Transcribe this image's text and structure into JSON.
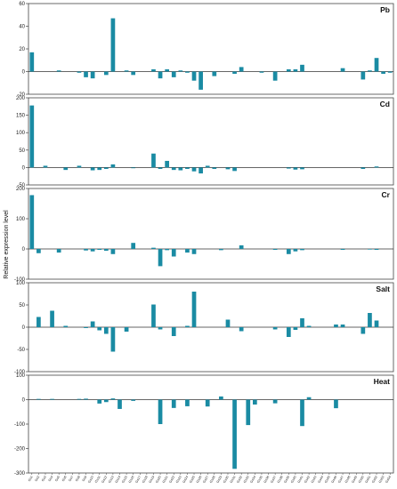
{
  "chart_data": [
    {
      "type": "bar",
      "title": "Pb",
      "ylim": [
        -20,
        60
      ],
      "yticks": [
        -20,
        0,
        20,
        40,
        60
      ],
      "bar_color": "#1a8ba3",
      "values": [
        17,
        0,
        0,
        0,
        1,
        0,
        0,
        -1,
        -5,
        -6,
        0,
        -3,
        47,
        0,
        1,
        -3,
        0,
        0,
        2,
        -6,
        2,
        -5,
        1,
        -1,
        -8,
        -16,
        0,
        -4,
        0,
        0,
        -2,
        4,
        0,
        0,
        -1,
        0,
        -8,
        0,
        2,
        2,
        6,
        0,
        0,
        0,
        0,
        0,
        3,
        0,
        0,
        -7,
        1,
        12,
        -2,
        -1
      ]
    },
    {
      "type": "bar",
      "title": "Cd",
      "ylim": [
        -50,
        200
      ],
      "yticks": [
        -50,
        0,
        50,
        100,
        150,
        200
      ],
      "bar_color": "#1a8ba3",
      "values": [
        178,
        0,
        5,
        0,
        0,
        -7,
        0,
        5,
        0,
        -8,
        -7,
        -4,
        9,
        0,
        0,
        -2,
        0,
        0,
        40,
        -4,
        19,
        -7,
        -8,
        -4,
        -11,
        -17,
        5,
        -4,
        0,
        -5,
        -10,
        0,
        0,
        0,
        0,
        0,
        0,
        0,
        -3,
        -6,
        -5,
        0,
        0,
        0,
        0,
        0,
        0,
        0,
        0,
        -4,
        0,
        3,
        0,
        0
      ]
    },
    {
      "type": "bar",
      "title": "Cr",
      "ylim": [
        -100,
        200
      ],
      "yticks": [
        -100,
        0,
        100,
        200
      ],
      "bar_color": "#1a8ba3",
      "values": [
        178,
        -14,
        0,
        0,
        -12,
        0,
        0,
        0,
        -5,
        -8,
        -3,
        -6,
        -17,
        0,
        0,
        20,
        0,
        0,
        4,
        -57,
        -4,
        -25,
        0,
        -12,
        -17,
        0,
        0,
        0,
        -4,
        0,
        0,
        12,
        0,
        0,
        0,
        0,
        -3,
        0,
        -17,
        -8,
        -4,
        0,
        0,
        0,
        0,
        0,
        -3,
        0,
        0,
        0,
        -2,
        -3,
        0,
        0
      ]
    },
    {
      "type": "bar",
      "title": "Salt",
      "ylim": [
        -100,
        100
      ],
      "yticks": [
        -100,
        -50,
        0,
        50,
        100
      ],
      "bar_color": "#1a8ba3",
      "values": [
        0,
        23,
        0,
        37,
        0,
        3,
        0,
        0,
        -2,
        13,
        -7,
        -15,
        -55,
        0,
        -10,
        0,
        0,
        0,
        51,
        -5,
        0,
        -20,
        0,
        3,
        80,
        0,
        0,
        0,
        0,
        17,
        0,
        -9,
        0,
        0,
        0,
        0,
        -5,
        0,
        -22,
        -6,
        20,
        3,
        0,
        0,
        0,
        6,
        6,
        0,
        0,
        -15,
        32,
        15,
        0,
        0
      ]
    },
    {
      "type": "bar",
      "title": "Heat",
      "ylim": [
        -300,
        100
      ],
      "yticks": [
        -300,
        -200,
        -100,
        0,
        100
      ],
      "bar_color": "#1a8ba3",
      "values": [
        0,
        3,
        0,
        3,
        0,
        0,
        0,
        3,
        4,
        0,
        -16,
        -10,
        5,
        -38,
        0,
        -5,
        0,
        0,
        0,
        -100,
        0,
        -34,
        0,
        -27,
        0,
        0,
        -28,
        0,
        13,
        0,
        -283,
        0,
        -104,
        -20,
        0,
        0,
        -15,
        0,
        0,
        0,
        -108,
        10,
        0,
        0,
        0,
        -35,
        0,
        0,
        0,
        0,
        0,
        0,
        0,
        0
      ]
    }
  ],
  "categories": [
    "Gs1",
    "Gs2",
    "Gs3",
    "Gs4",
    "Gs5",
    "Gs6",
    "Gs7",
    "Gs8",
    "Gs9",
    "Gs10",
    "Gs11",
    "Gs12",
    "Gs13",
    "Gs14",
    "Gs15",
    "Gs16",
    "Gs17",
    "Gs18",
    "Gs19",
    "Gs20",
    "Gs21",
    "Gs22",
    "Gs23",
    "Gs24",
    "Gs25",
    "Gs26",
    "Gs27",
    "Gs28",
    "Gs29",
    "Gs30",
    "Gs31",
    "Gs32",
    "Gs33",
    "Gs34",
    "Gs35",
    "Gs36",
    "Gs37",
    "Gs38",
    "Gs39",
    "Gs40",
    "Gs41",
    "Gs42",
    "Gs43",
    "Gs44",
    "Gs45",
    "Gs46",
    "Gs47",
    "Gs48",
    "Gs49",
    "Gs50",
    "Gs51",
    "Gs52",
    "Gs53",
    "Gs54"
  ],
  "ylabel": "Relative expression level"
}
